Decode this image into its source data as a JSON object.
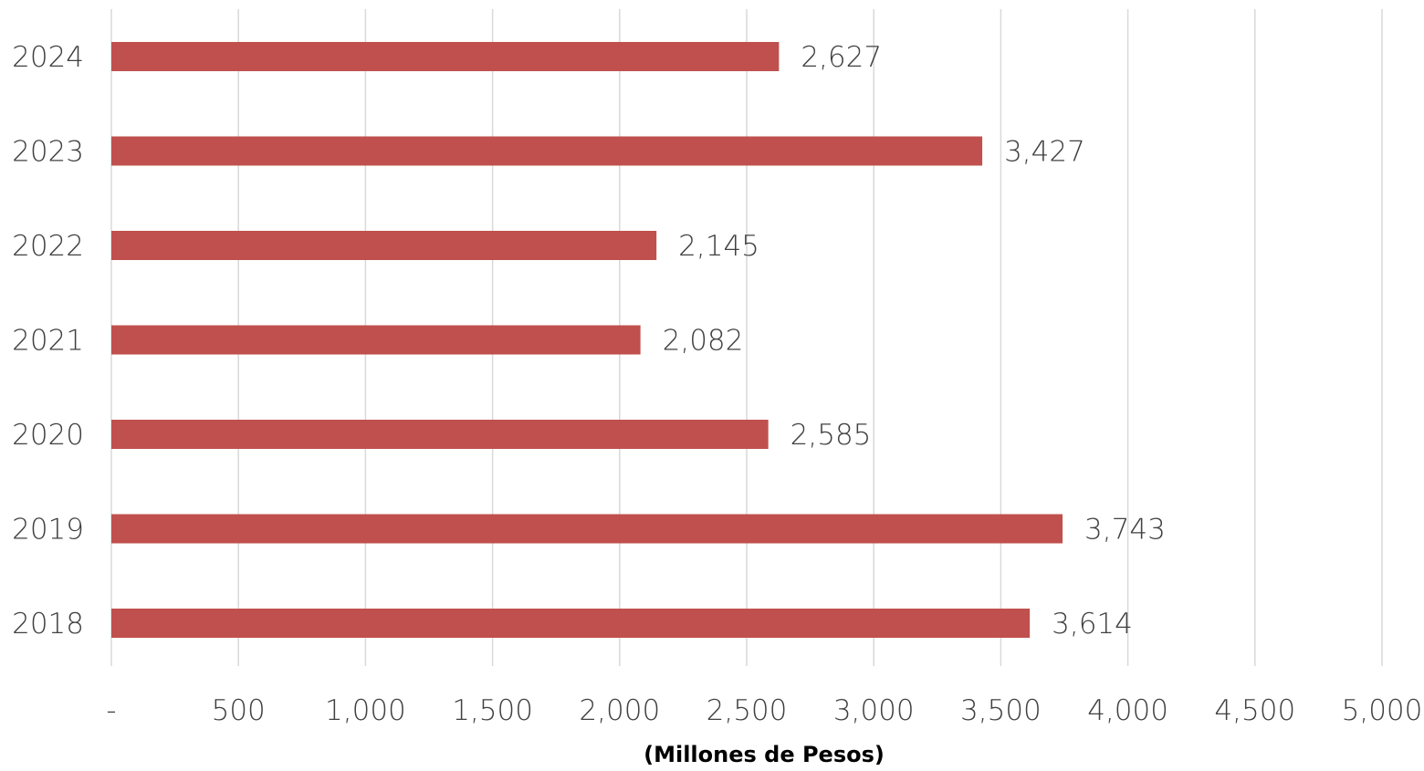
{
  "chart_data": {
    "type": "bar",
    "orientation": "horizontal",
    "categories": [
      "2024",
      "2023",
      "2022",
      "2021",
      "2020",
      "2019",
      "2018"
    ],
    "values": [
      2627,
      3427,
      2145,
      2082,
      2585,
      3743,
      3614
    ],
    "data_labels": [
      "2,627",
      "3,427",
      "2,145",
      "2,082",
      "2,585",
      "3,743",
      "3,614"
    ],
    "xlim": [
      0,
      5000
    ],
    "x_ticks": [
      0,
      500,
      1000,
      1500,
      2000,
      2500,
      3000,
      3500,
      4000,
      4500,
      5000
    ],
    "x_tick_labels": [
      "-",
      "500",
      "1,000",
      "1,500",
      "2,000",
      "2,500",
      "3,000",
      "3,500",
      "4,000",
      "4,500",
      "5,000"
    ],
    "xlabel": "(Millones de Pesos)",
    "grid": "vertical",
    "bar_color": "#c0504d",
    "grid_color": "#d9d9d9",
    "text_color": "#404040"
  }
}
